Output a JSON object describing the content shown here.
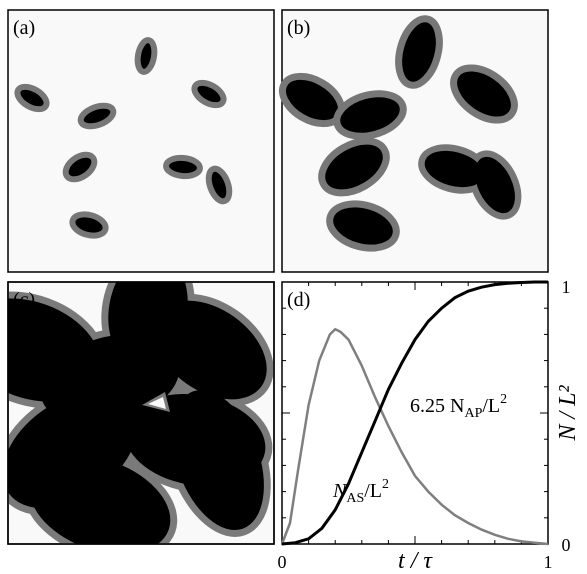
{
  "figure": {
    "panels": {
      "a": {
        "label": "(a)"
      },
      "b": {
        "label": "(b)"
      },
      "c": {
        "label": "(c)"
      },
      "d": {
        "label": "(d)"
      }
    }
  },
  "chart_data": {
    "type": "line",
    "title": "",
    "xlabel": "t / τ",
    "ylabel": "N / L²",
    "xlim": [
      0,
      1
    ],
    "ylim": [
      0,
      1
    ],
    "x_ticks": [
      "0",
      "1"
    ],
    "y_ticks": [
      "0",
      "1"
    ],
    "grid": false,
    "colors": {
      "N_AS": "#000000",
      "N_AP": "#7f7f7f"
    },
    "series": [
      {
        "name": "N_AS / L²",
        "x": [
          0,
          0.05,
          0.1,
          0.15,
          0.2,
          0.25,
          0.3,
          0.35,
          0.4,
          0.45,
          0.5,
          0.55,
          0.6,
          0.65,
          0.7,
          0.75,
          0.8,
          0.85,
          0.9,
          0.95,
          1.0
        ],
        "y": [
          0,
          0.005,
          0.02,
          0.06,
          0.13,
          0.23,
          0.35,
          0.47,
          0.59,
          0.69,
          0.78,
          0.85,
          0.9,
          0.94,
          0.965,
          0.98,
          0.99,
          0.995,
          0.998,
          1.0,
          1.0
        ]
      },
      {
        "name": "6.25 N_AP / L²",
        "x": [
          0,
          0.03,
          0.06,
          0.1,
          0.14,
          0.18,
          0.2,
          0.22,
          0.25,
          0.3,
          0.35,
          0.4,
          0.45,
          0.5,
          0.55,
          0.6,
          0.65,
          0.7,
          0.75,
          0.8,
          0.85,
          0.9,
          0.95,
          1.0
        ],
        "y": [
          0,
          0.08,
          0.28,
          0.53,
          0.7,
          0.8,
          0.82,
          0.81,
          0.78,
          0.68,
          0.56,
          0.45,
          0.35,
          0.26,
          0.2,
          0.15,
          0.11,
          0.08,
          0.055,
          0.035,
          0.02,
          0.01,
          0.005,
          0.0
        ]
      }
    ],
    "annotations": [
      {
        "main": "6.25 N",
        "sub": "AP",
        "rest": "/L",
        "sup": "2"
      },
      {
        "main": "N",
        "sub": "AS",
        "rest": "/L",
        "sup": "2"
      }
    ]
  }
}
